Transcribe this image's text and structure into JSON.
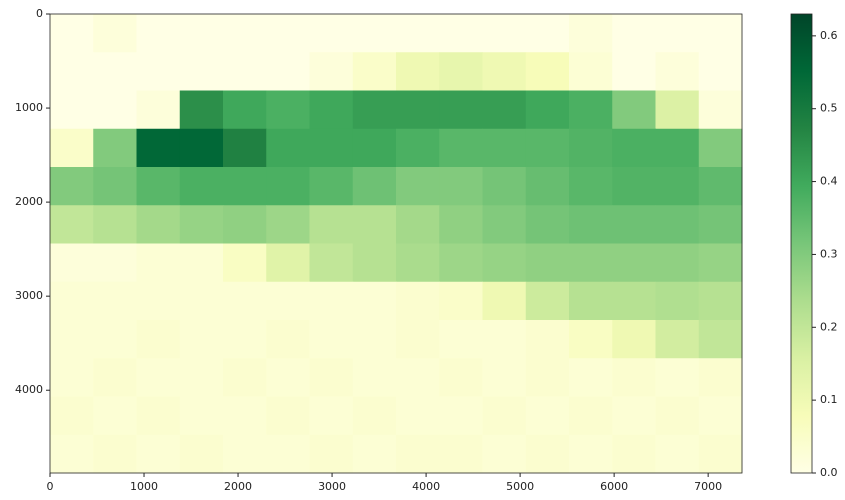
{
  "chart_data": {
    "type": "heatmap",
    "xlim": [
      0,
      7360
    ],
    "ylim": [
      4880,
      0
    ],
    "xticks": [
      0,
      1000,
      2000,
      3000,
      4000,
      5000,
      6000,
      7000
    ],
    "yticks": [
      0,
      1000,
      2000,
      3000,
      4000
    ],
    "clim": [
      0,
      0.63
    ],
    "cticks": [
      {
        "value": 0,
        "label": "0.0"
      },
      0.1,
      0.2,
      0.3,
      0.4,
      0.5,
      0.6
    ],
    "colormap": [
      "#ffffe5",
      "#f7fcb9",
      "#d9f0a3",
      "#addd8e",
      "#78c679",
      "#41ab5d",
      "#238443",
      "#006837",
      "#004529"
    ],
    "values": [
      [
        0,
        0.02,
        0,
        0,
        0,
        0,
        0,
        0,
        0,
        0,
        0,
        0,
        0.02,
        0,
        0,
        0
      ],
      [
        0,
        0,
        0,
        0,
        0,
        0,
        0.02,
        0.05,
        0.1,
        0.12,
        0.1,
        0.08,
        0.03,
        0,
        0.02,
        0
      ],
      [
        0,
        0,
        0.02,
        0.45,
        0.4,
        0.38,
        0.4,
        0.42,
        0.42,
        0.42,
        0.42,
        0.4,
        0.38,
        0.3,
        0.15,
        0.02
      ],
      [
        0.05,
        0.3,
        0.55,
        0.55,
        0.48,
        0.4,
        0.4,
        0.4,
        0.38,
        0.36,
        0.36,
        0.36,
        0.37,
        0.38,
        0.38,
        0.3
      ],
      [
        0.3,
        0.32,
        0.36,
        0.38,
        0.38,
        0.38,
        0.36,
        0.33,
        0.3,
        0.3,
        0.32,
        0.34,
        0.36,
        0.37,
        0.37,
        0.35
      ],
      [
        0.2,
        0.22,
        0.25,
        0.27,
        0.28,
        0.26,
        0.22,
        0.22,
        0.25,
        0.28,
        0.3,
        0.32,
        0.33,
        0.33,
        0.33,
        0.32
      ],
      [
        0.02,
        0.02,
        0.03,
        0.03,
        0.06,
        0.14,
        0.2,
        0.22,
        0.24,
        0.26,
        0.27,
        0.28,
        0.28,
        0.28,
        0.28,
        0.27
      ],
      [
        0.03,
        0.03,
        0.03,
        0.03,
        0.03,
        0.03,
        0.03,
        0.03,
        0.04,
        0.05,
        0.1,
        0.18,
        0.22,
        0.22,
        0.23,
        0.22
      ],
      [
        0.03,
        0.03,
        0.04,
        0.03,
        0.03,
        0.04,
        0.03,
        0.03,
        0.04,
        0.03,
        0.03,
        0.04,
        0.06,
        0.1,
        0.17,
        0.2
      ],
      [
        0.03,
        0.04,
        0.03,
        0.03,
        0.04,
        0.03,
        0.04,
        0.03,
        0.03,
        0.04,
        0.03,
        0.04,
        0.03,
        0.04,
        0.03,
        0.04
      ],
      [
        0.04,
        0.03,
        0.04,
        0.03,
        0.03,
        0.04,
        0.03,
        0.04,
        0.03,
        0.03,
        0.04,
        0.03,
        0.04,
        0.03,
        0.04,
        0.03
      ],
      [
        0.03,
        0.04,
        0.03,
        0.04,
        0.03,
        0.03,
        0.04,
        0.03,
        0.04,
        0.04,
        0.03,
        0.04,
        0.03,
        0.04,
        0.03,
        0.04
      ]
    ]
  }
}
